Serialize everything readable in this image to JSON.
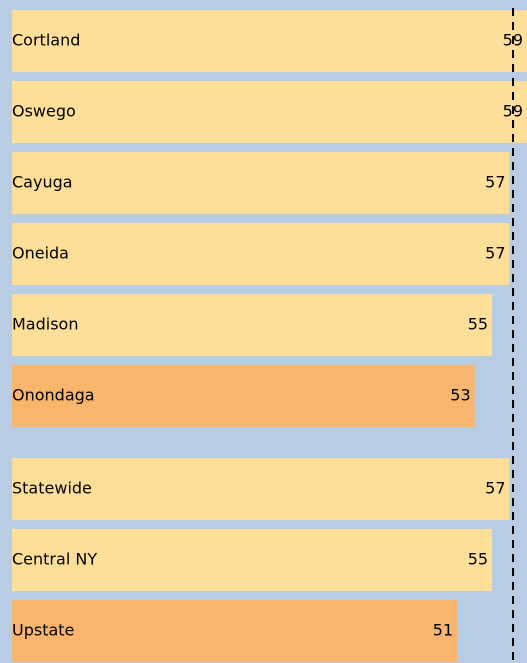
{
  "chart_data": {
    "type": "bar",
    "orientation": "horizontal",
    "categories": [
      "Cortland",
      "Oswego",
      "Cayuga",
      "Oneida",
      "Madison",
      "Onondaga",
      "Statewide",
      "Central NY",
      "Upstate"
    ],
    "values": [
      59,
      59,
      57,
      57,
      55,
      53,
      57,
      55,
      51
    ],
    "colors": [
      "#fddf99",
      "#fddf99",
      "#fddf99",
      "#fddf99",
      "#fddf99",
      "#f7b56e",
      "#fddf99",
      "#fddf99",
      "#f7b56e"
    ],
    "xlim": [
      0,
      59
    ],
    "reference_value": 57.4,
    "background": "#b8cce4"
  }
}
